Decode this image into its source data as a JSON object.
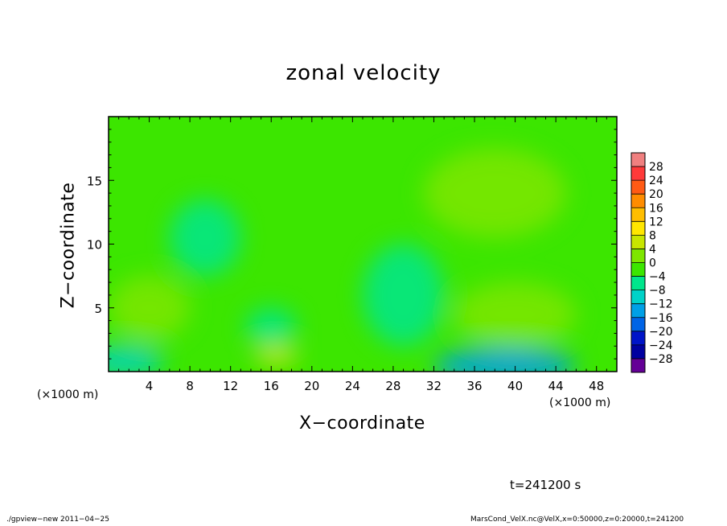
{
  "chart_data": {
    "type": "heatmap",
    "title": "zonal velocity",
    "xlabel": "X−coordinate",
    "ylabel": "Z−coordinate",
    "x_unit_label_left": "(×1000 m)",
    "x_unit_label_right": "(×1000 m)",
    "xlim": [
      0,
      50
    ],
    "ylim": [
      0,
      20
    ],
    "x_ticks": [
      4,
      8,
      12,
      16,
      20,
      24,
      28,
      32,
      36,
      40,
      44,
      48
    ],
    "y_ticks": [
      5,
      10,
      15
    ],
    "colorbar": {
      "labels": [
        "28",
        "24",
        "20",
        "16",
        "12",
        "8",
        "4",
        "0",
        "−4",
        "−8",
        "−12",
        "−16",
        "−20",
        "−24",
        "−28"
      ],
      "colors": [
        "#f08080",
        "#ff3a3a",
        "#ff5a14",
        "#ff8c00",
        "#ffbe00",
        "#ffe600",
        "#c8e600",
        "#7ee600",
        "#3ce600",
        "#00e68c",
        "#00d2c8",
        "#00a0e6",
        "#0064e6",
        "#0014c8",
        "#0000a0",
        "#640096"
      ]
    },
    "fields": [
      {
        "name": "base",
        "value": -2
      },
      {
        "name": "bottom-cyan-blob",
        "x": 39,
        "z": 0.4,
        "value": -14
      },
      {
        "name": "bottom-left-cyan",
        "x": 1.5,
        "z": 0.8,
        "value": -9
      },
      {
        "name": "yellow-patch",
        "x": 16.5,
        "z": 1.2,
        "value": 8
      },
      {
        "name": "left-mid-yellow",
        "x": 4,
        "z": 5,
        "value": 4
      },
      {
        "name": "center-cyan",
        "x": 29,
        "z": 6,
        "value": -7
      },
      {
        "name": "upper-left-cyan",
        "x": 9.5,
        "z": 10.5,
        "value": -6
      },
      {
        "name": "right-yellow",
        "x": 40,
        "z": 4.5,
        "value": 4
      },
      {
        "name": "right-green-top",
        "x": 38,
        "z": 14,
        "value": 2
      },
      {
        "name": "mid-teal",
        "x": 16,
        "z": 3.5,
        "value": -7
      }
    ],
    "time_label": "t=241200 s"
  },
  "footer": {
    "left": "./gpview−new   2011−04−25",
    "right": "MarsCond_VelX.nc@VelX,x=0:50000,z=0:20000,t=241200"
  }
}
